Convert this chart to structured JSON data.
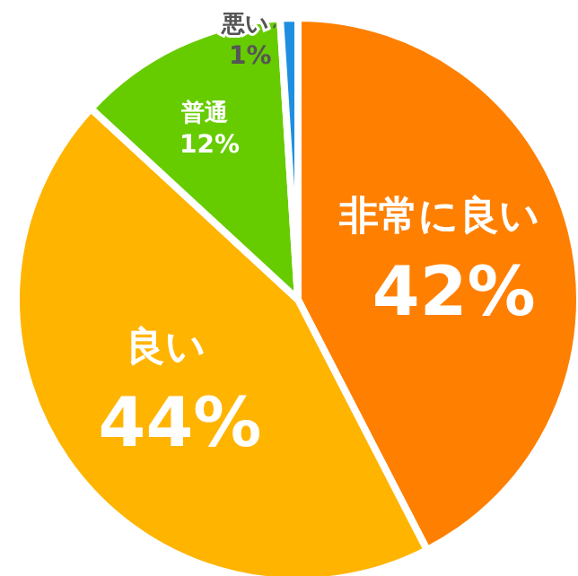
{
  "chart_data": {
    "type": "pie",
    "categories": [
      "非常に良い",
      "良い",
      "普通",
      "悪い"
    ],
    "values": [
      42,
      44,
      12,
      1
    ],
    "value_labels": [
      "42%",
      "44%",
      "12%",
      "1%"
    ],
    "colors": [
      "#ff7f00",
      "#ffb400",
      "#66cc00",
      "#1e8fe0"
    ]
  }
}
